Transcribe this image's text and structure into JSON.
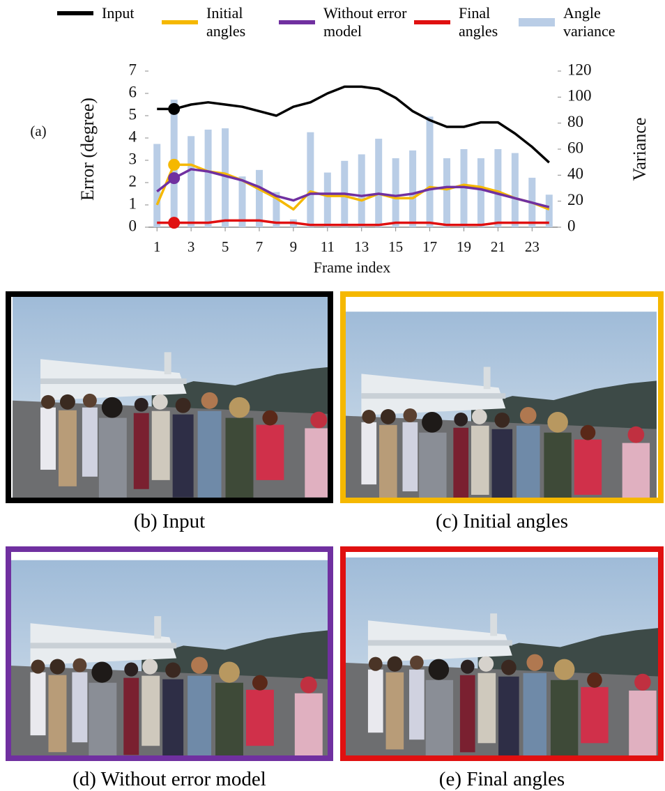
{
  "panel_label": "(a)",
  "chart_data": {
    "type": "line",
    "x": [
      1,
      2,
      3,
      4,
      5,
      6,
      7,
      8,
      9,
      10,
      11,
      12,
      13,
      14,
      15,
      16,
      17,
      18,
      19,
      20,
      21,
      22,
      23,
      24
    ],
    "xlim": [
      0.5,
      24.5
    ],
    "xticks": [
      1,
      3,
      5,
      7,
      9,
      11,
      13,
      15,
      17,
      19,
      21,
      23
    ],
    "x_label": "Frame index",
    "y_label": "Error (degree)",
    "ylim": [
      0,
      7
    ],
    "yticks": [
      0,
      1,
      2,
      3,
      4,
      5,
      6,
      7
    ],
    "y2_label": "Variance",
    "y2lim": [
      0,
      120
    ],
    "y2ticks": [
      0,
      20,
      40,
      60,
      80,
      100,
      120
    ],
    "marker_x": 2,
    "series": [
      {
        "name": "Input",
        "type": "line",
        "color": "#000000",
        "values": [
          5.3,
          5.3,
          5.5,
          5.6,
          5.5,
          5.4,
          5.2,
          5.0,
          5.4,
          5.6,
          6.0,
          6.3,
          6.3,
          6.2,
          5.8,
          5.2,
          4.8,
          4.5,
          4.5,
          4.7,
          4.7,
          4.2,
          3.6,
          2.9
        ]
      },
      {
        "name": "Initial angles",
        "type": "line",
        "color": "#f5b800",
        "values": [
          1.0,
          2.8,
          2.8,
          2.5,
          2.4,
          2.1,
          1.7,
          1.3,
          0.8,
          1.6,
          1.4,
          1.4,
          1.2,
          1.5,
          1.3,
          1.3,
          1.8,
          1.7,
          1.9,
          1.8,
          1.6,
          1.3,
          1.1,
          0.8
        ]
      },
      {
        "name": "Without error model",
        "type": "line",
        "color": "#7030a0",
        "values": [
          1.6,
          2.2,
          2.6,
          2.5,
          2.3,
          2.1,
          1.8,
          1.4,
          1.2,
          1.5,
          1.5,
          1.5,
          1.4,
          1.5,
          1.4,
          1.5,
          1.7,
          1.8,
          1.8,
          1.7,
          1.5,
          1.3,
          1.1,
          0.9
        ]
      },
      {
        "name": "Final angles",
        "type": "line",
        "color": "#e01010",
        "values": [
          0.2,
          0.2,
          0.2,
          0.2,
          0.3,
          0.3,
          0.3,
          0.2,
          0.2,
          0.1,
          0.1,
          0.1,
          0.1,
          0.1,
          0.2,
          0.2,
          0.2,
          0.1,
          0.1,
          0.1,
          0.2,
          0.2,
          0.2,
          0.2
        ]
      },
      {
        "name": "Angle variance",
        "type": "bar",
        "axis": "y2",
        "color": "#b9cde6",
        "values": [
          64,
          98,
          70,
          75,
          76,
          39,
          44,
          27,
          6,
          73,
          42,
          51,
          56,
          68,
          53,
          59,
          85,
          53,
          60,
          53,
          60,
          57,
          38,
          25
        ]
      }
    ]
  },
  "panels": [
    {
      "caption": "(b) Input",
      "border_color": "#000000"
    },
    {
      "caption": "(c) Initial angles",
      "border_color": "#f5b800"
    },
    {
      "caption": "(d) Without error model",
      "border_color": "#7030a0"
    },
    {
      "caption": "(e) Final angles",
      "border_color": "#e01010"
    }
  ]
}
